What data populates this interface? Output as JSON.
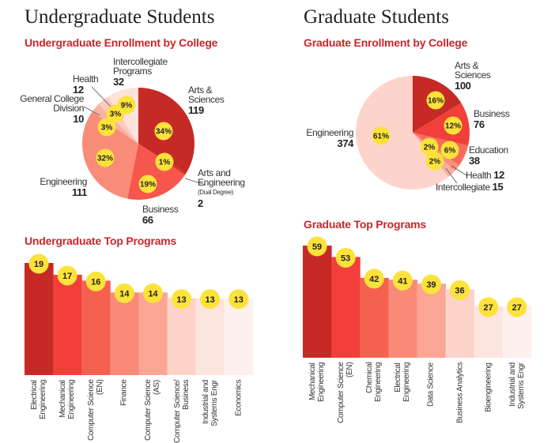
{
  "badge_color": "#fde23a",
  "undergrad": {
    "heading": "Undergraduate Students",
    "pie_title": "Undergraduate Enrollment by College",
    "bar_title": "Undergraduate Top Programs"
  },
  "grad": {
    "heading": "Graduate Students",
    "pie_title": "Graduate Enrollment by College",
    "bar_title": "Graduate Top Programs"
  },
  "chart_data": [
    {
      "type": "pie",
      "title": "Undergraduate Enrollment by College",
      "slices": [
        {
          "label": "Arts & Sciences",
          "value": 119,
          "value_text": "119",
          "percent": "34%",
          "color": "#c62a26"
        },
        {
          "label": "Arts and Engineering",
          "note": "(Dual Degree)",
          "value": 2,
          "value_text": "2",
          "percent": "1%",
          "color": "#d9322c"
        },
        {
          "label": "Business",
          "value": 66,
          "value_text": "66",
          "percent": "19%",
          "color": "#f6564c"
        },
        {
          "label": "Engineering",
          "value": 111,
          "value_text": "111",
          "percent": "32%",
          "color": "#f98b79"
        },
        {
          "label": "General College Division",
          "value": 10,
          "value_text": "10",
          "percent": "3%",
          "color": "#f9b2a4"
        },
        {
          "label": "Health",
          "value": 12,
          "value_text": "12",
          "percent": "3%",
          "color": "#fbcabf"
        },
        {
          "label": "Intercollegiate Programs",
          "value": 32,
          "value_text": "32",
          "percent": "9%",
          "color": "#fde2dc"
        }
      ]
    },
    {
      "type": "pie",
      "title": "Graduate Enrollment by College",
      "slices": [
        {
          "label": "Arts & Sciences",
          "value": 100,
          "value_text": "100",
          "percent": "16%",
          "color": "#c62a26"
        },
        {
          "label": "Business",
          "value": 76,
          "value_text": "76",
          "percent": "12%",
          "color": "#f23f3c"
        },
        {
          "label": "Education",
          "value": 38,
          "value_text": "38",
          "percent": "6%",
          "color": "#f86c5c"
        },
        {
          "label": "Health",
          "value": 12,
          "value_text": "12",
          "percent": "2%",
          "color": "#f98f7e"
        },
        {
          "label": "Intercollegiate",
          "value": 15,
          "value_text": "15",
          "percent": "2%",
          "color": "#fbae9f"
        },
        {
          "label": "Engineering",
          "value": 374,
          "value_text": "374",
          "percent": "61%",
          "color": "#fdd4cb"
        }
      ]
    },
    {
      "type": "bar",
      "title": "Undergraduate Top Programs",
      "categories": [
        "Electrical Engineering",
        "Mechanical Engineering",
        "Computer Science (EN)",
        "Finance",
        "Computer Science (AS)",
        "Computer Science/ Business",
        "Industrial and Systems Engr",
        "Economics"
      ],
      "values": [
        19,
        17,
        16,
        14,
        14,
        13,
        13,
        13
      ],
      "colors": [
        "#c62a26",
        "#f23f3c",
        "#f6604f",
        "#f98a78",
        "#fba594",
        "#fdd3c9",
        "#fde5df",
        "#fef1ed"
      ],
      "ylim": [
        0,
        19
      ]
    },
    {
      "type": "bar",
      "title": "Graduate Top Programs",
      "categories": [
        "Mechanical Engineering",
        "Computer Science (EN)",
        "Chemical Engineering",
        "Electrical Engineering",
        "Data Science",
        "Business Analytics",
        "Bioengineering",
        "Industrial and Systems Engr"
      ],
      "values": [
        59,
        53,
        42,
        41,
        39,
        36,
        27,
        27
      ],
      "colors": [
        "#c62a26",
        "#f23f3c",
        "#f6604f",
        "#f98a78",
        "#fba594",
        "#fdd3c9",
        "#fde5df",
        "#fef1ed"
      ],
      "ylim": [
        0,
        59
      ]
    }
  ]
}
